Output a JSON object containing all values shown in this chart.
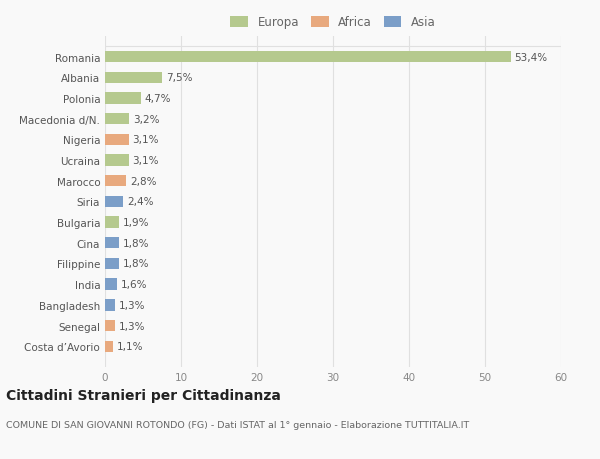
{
  "countries": [
    "Romania",
    "Albania",
    "Polonia",
    "Macedonia d/N.",
    "Nigeria",
    "Ucraina",
    "Marocco",
    "Siria",
    "Bulgaria",
    "Cina",
    "Filippine",
    "India",
    "Bangladesh",
    "Senegal",
    "Costa d’Avorio"
  ],
  "values": [
    53.4,
    7.5,
    4.7,
    3.2,
    3.1,
    3.1,
    2.8,
    2.4,
    1.9,
    1.8,
    1.8,
    1.6,
    1.3,
    1.3,
    1.1
  ],
  "labels": [
    "53,4%",
    "7,5%",
    "4,7%",
    "3,2%",
    "3,1%",
    "3,1%",
    "2,8%",
    "2,4%",
    "1,9%",
    "1,8%",
    "1,8%",
    "1,6%",
    "1,3%",
    "1,3%",
    "1,1%"
  ],
  "continents": [
    "Europa",
    "Europa",
    "Europa",
    "Europa",
    "Africa",
    "Europa",
    "Africa",
    "Asia",
    "Europa",
    "Asia",
    "Asia",
    "Asia",
    "Asia",
    "Africa",
    "Africa"
  ],
  "continent_colors": {
    "Europa": "#b5c98e",
    "Africa": "#e8a97e",
    "Asia": "#7b9ec8"
  },
  "legend_labels": [
    "Europa",
    "Africa",
    "Asia"
  ],
  "legend_colors": [
    "#b5c98e",
    "#e8a97e",
    "#7b9ec8"
  ],
  "title": "Cittadini Stranieri per Cittadinanza",
  "subtitle": "COMUNE DI SAN GIOVANNI ROTONDO (FG) - Dati ISTAT al 1° gennaio - Elaborazione TUTTITALIA.IT",
  "xlim": [
    0,
    60
  ],
  "xticks": [
    0,
    10,
    20,
    30,
    40,
    50,
    60
  ],
  "background_color": "#f9f9f9",
  "grid_color": "#e0e0e0",
  "bar_height": 0.55,
  "label_fontsize": 7.5,
  "tick_fontsize": 7.5,
  "title_fontsize": 10,
  "subtitle_fontsize": 6.8
}
